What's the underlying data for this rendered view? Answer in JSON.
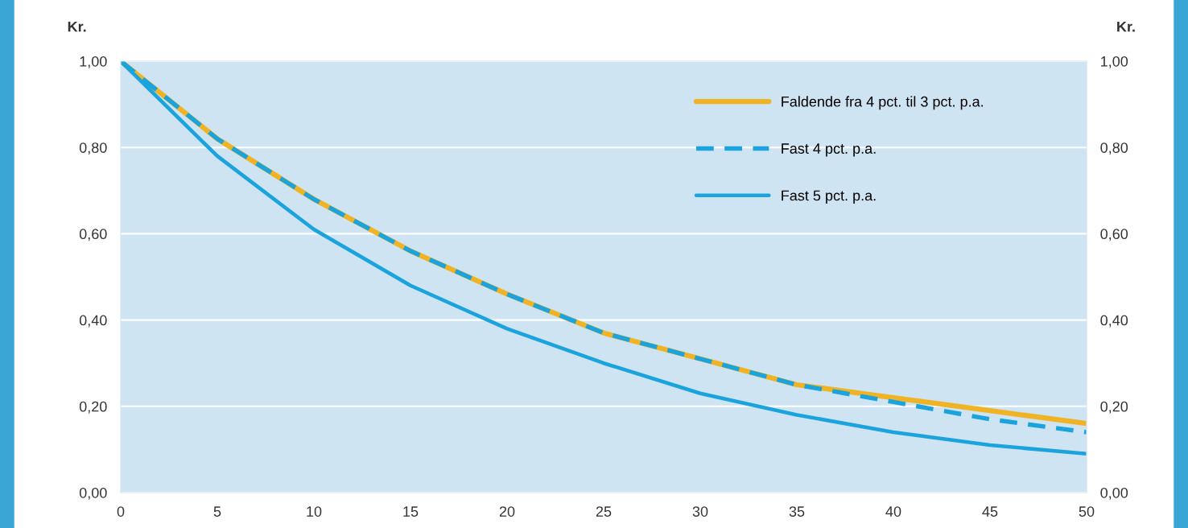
{
  "chart_data": {
    "type": "line",
    "ylabel": "Kr.",
    "y2label": "Kr.",
    "x": [
      0,
      5,
      10,
      15,
      20,
      25,
      30,
      35,
      40,
      45,
      50
    ],
    "series": [
      {
        "name": "Faldende fra 4 pct. til 3 pct. p.a.",
        "color": "#f0b323",
        "line_style": "solid",
        "values": [
          1.0,
          0.82,
          0.68,
          0.56,
          0.46,
          0.37,
          0.31,
          0.25,
          0.22,
          0.19,
          0.16
        ]
      },
      {
        "name": "Fast 4 pct. p.a.",
        "color": "#1aa3dc",
        "line_style": "dashed",
        "values": [
          1.0,
          0.82,
          0.68,
          0.56,
          0.46,
          0.37,
          0.31,
          0.25,
          0.21,
          0.17,
          0.14
        ]
      },
      {
        "name": "Fast 5 pct. p.a.",
        "color": "#1aa3dc",
        "line_style": "solid",
        "values": [
          1.0,
          0.78,
          0.61,
          0.48,
          0.38,
          0.3,
          0.23,
          0.18,
          0.14,
          0.11,
          0.09
        ]
      }
    ],
    "xlim": [
      0,
      50
    ],
    "xticks": [
      0,
      5,
      10,
      15,
      20,
      25,
      30,
      35,
      40,
      45,
      50
    ],
    "ylim": [
      0,
      1
    ],
    "yticks": [
      {
        "value": 0,
        "label": "0,00"
      },
      {
        "value": 0.2,
        "label": "0,20"
      },
      {
        "value": 0.4,
        "label": "0,40"
      },
      {
        "value": 0.6,
        "label": "0,60"
      },
      {
        "value": 0.8,
        "label": "0,80"
      },
      {
        "value": 1,
        "label": "1,00"
      }
    ],
    "y2lim": [
      0,
      1
    ],
    "y2ticks": [
      {
        "value": 0,
        "label": "0,00"
      },
      {
        "value": 0.2,
        "label": "0,20"
      },
      {
        "value": 0.4,
        "label": "0,40"
      },
      {
        "value": 0.6,
        "label": "0,60"
      },
      {
        "value": 0.8,
        "label": "0,80"
      },
      {
        "value": 1,
        "label": "1,00"
      }
    ],
    "grid": "y",
    "legend": "top right",
    "marker": "none"
  }
}
